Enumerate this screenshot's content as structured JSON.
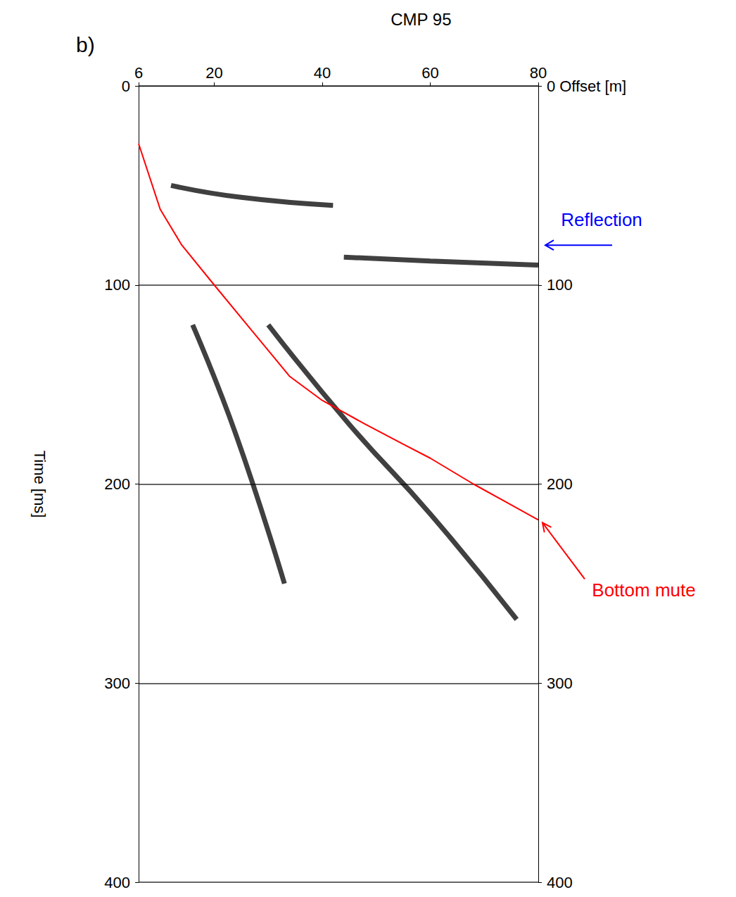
{
  "chart_data": {
    "type": "line",
    "title": "CMP 95",
    "panel": "b)",
    "x_label": "Offset [m]",
    "y_label": "Time [ms]",
    "xlim": [
      6,
      80
    ],
    "xticks": [
      6,
      20,
      40,
      60,
      80
    ],
    "ylim": [
      0,
      400
    ],
    "yticks": [
      0,
      100,
      200,
      300,
      400
    ],
    "y2lim": [
      0,
      400
    ],
    "y2ticks": [
      0,
      100,
      200,
      300,
      400
    ],
    "grid": true,
    "tick_labels": true,
    "mute": {
      "color": "#ff0000",
      "x": [
        6,
        10,
        14,
        20,
        27,
        34,
        40,
        48,
        55,
        60,
        68,
        74,
        80
      ],
      "time": [
        29,
        62,
        80,
        100,
        123,
        146,
        158,
        170,
        180,
        187,
        200,
        209,
        218
      ]
    },
    "events": [
      {
        "color": "#000000",
        "x": [
          12,
          25,
          42
        ],
        "time": [
          50,
          56,
          60
        ]
      },
      {
        "color": "#000000",
        "x": [
          44,
          60,
          80
        ],
        "time": [
          86,
          88,
          90
        ]
      },
      {
        "color": "#000000",
        "x": [
          30,
          45,
          60,
          76
        ],
        "time": [
          120,
          170,
          215,
          268
        ]
      },
      {
        "color": "#000000",
        "x": [
          16,
          24,
          33
        ],
        "time": [
          120,
          175,
          250
        ]
      }
    ],
    "annotations": [
      {
        "text": "Reflection",
        "color": "#0000ff",
        "x": 80,
        "time": 80
      },
      {
        "text": "Bottom mute",
        "color": "#ff0000",
        "x": 80,
        "time": 218
      }
    ]
  }
}
